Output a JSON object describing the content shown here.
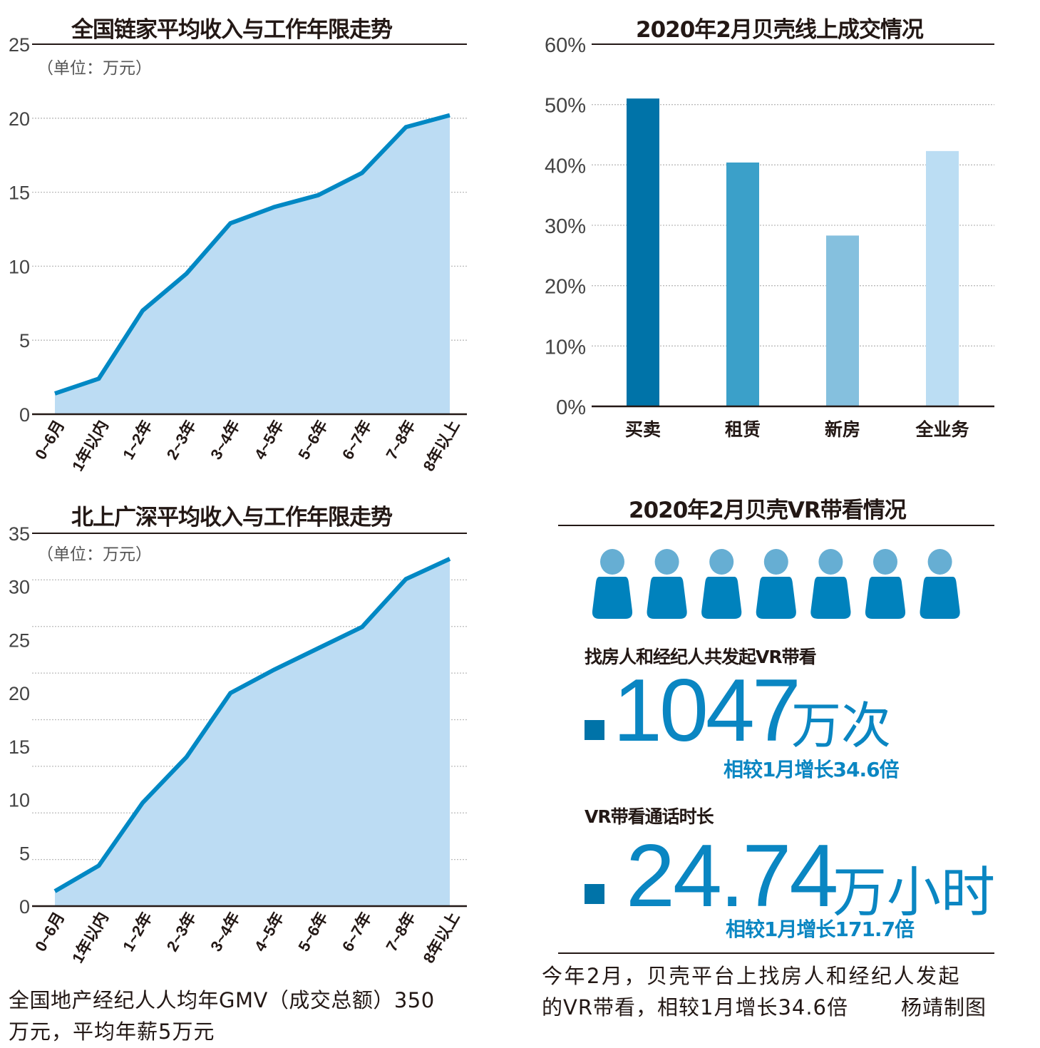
{
  "chart_data": [
    {
      "type": "area",
      "title": "全国链家平均收入与工作年限走势",
      "unit_note": "（单位：万元）",
      "categories": [
        "0~6月",
        "1年以内",
        "1~2年",
        "2~3年",
        "3~4年",
        "4~5年",
        "5~6年",
        "6~7年",
        "7~8年",
        "8年以上"
      ],
      "values": [
        1.4,
        2.4,
        7.0,
        9.5,
        12.9,
        14.0,
        14.8,
        16.3,
        19.4,
        20.2
      ],
      "yticks": [
        "0",
        "5",
        "10",
        "15",
        "20",
        "25"
      ],
      "ylim": [
        0,
        25
      ],
      "grid": true,
      "colors": {
        "line": "#0088c4",
        "fill": "#bcdcf3"
      }
    },
    {
      "type": "area",
      "title": "北上广深平均收入与工作年限走势",
      "unit_note": "（单位：万元）",
      "categories": [
        "0~6月",
        "1年以内",
        "1~2年",
        "2~3年",
        "3~4年",
        "4~5年",
        "5~6年",
        "6~7年",
        "7~8年",
        "8年以上"
      ],
      "values": [
        1.4,
        3.8,
        9.7,
        14.0,
        20.0,
        22.2,
        24.2,
        26.2,
        30.7,
        32.6
      ],
      "yticks": [
        "0",
        "5",
        "10",
        "15",
        "20",
        "25",
        "30",
        "35"
      ],
      "ylim": [
        0,
        35
      ],
      "grid": true,
      "colors": {
        "line": "#0088c4",
        "fill": "#bcdcf3"
      }
    },
    {
      "type": "bar",
      "title": "2020年2月贝壳线上成交情况",
      "categories": [
        "买卖",
        "租赁",
        "新房",
        "全业务"
      ],
      "values": [
        51.0,
        40.4,
        28.3,
        42.3
      ],
      "yticks": [
        "0%",
        "10%",
        "20%",
        "30%",
        "40%",
        "50%",
        "60%"
      ],
      "ylim": [
        0,
        60
      ],
      "grid": true,
      "colors": [
        "#0073a8",
        "#3ba0c9",
        "#85c0de",
        "#bbddf3"
      ]
    }
  ],
  "vr": {
    "title": "2020年2月贝壳VR带看情况",
    "people_count": 7,
    "people_icon": "person-icon",
    "colors": {
      "head": "#66aed3",
      "body": "#0082bd",
      "square": "#0073a8"
    },
    "stat1": {
      "label": "找房人和经纪人共发起VR带看",
      "value": "1047",
      "unit": "万次",
      "growth": "相较1月增长34.6倍"
    },
    "stat2": {
      "label": "VR带看通话时长",
      "value": "24.74",
      "unit": "万小时",
      "growth": "相较1月增长171.7倍"
    },
    "caption_line1": "今年2月，贝壳平台上找房人和经纪人发起",
    "caption_line2": "的VR带看，相较1月增长34.6倍",
    "credit": "杨靖制图"
  },
  "footnote": {
    "line1": "全国地产经纪人人均年GMV（成交总额）350",
    "line2": "万元，平均年薪5万元"
  }
}
